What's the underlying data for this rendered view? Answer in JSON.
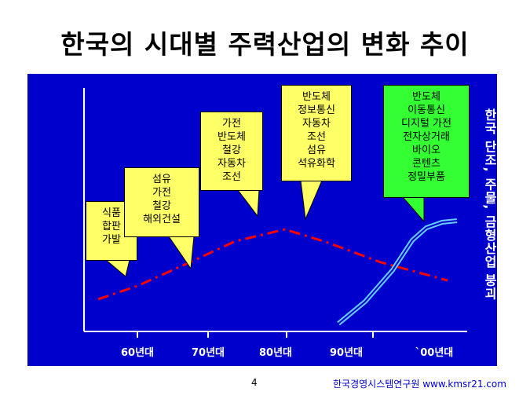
{
  "title": "한국의 시대별 주력산업의 변화 추이",
  "x_axis": {
    "labels": [
      "60년대",
      "70년대",
      "80년대",
      "90년대",
      "`00년대"
    ]
  },
  "callouts": [
    {
      "lines": [
        "식품",
        "합판",
        "가발"
      ],
      "color": "yellow"
    },
    {
      "lines": [
        "섬유",
        "가전",
        "철강",
        "해외건설"
      ],
      "color": "yellow"
    },
    {
      "lines": [
        "가전",
        "반도체",
        "철강",
        "자동차",
        "조선"
      ],
      "color": "yellow"
    },
    {
      "lines": [
        "반도체",
        "정보통신",
        "자동차",
        "조선",
        "섬유",
        "석유화학"
      ],
      "color": "yellow"
    },
    {
      "lines": [
        "반도체",
        "이동통신",
        "디지털 가전",
        "전자상거래",
        "바이오",
        "콘텐츠",
        "정밀부품"
      ],
      "color": "green"
    }
  ],
  "side_note": "한국 단조, 주물, 금형산업 붕괴",
  "colors": {
    "panel_bg": "#0000cc",
    "dashed_curve": "#ff0000",
    "rising_curve": "#3399ff",
    "callout_yellow": "#ffff66",
    "callout_green": "#33ff33"
  },
  "footer": {
    "page_number": "4",
    "organization": "한국경영시스템연구원 www.kmsr21.com"
  }
}
